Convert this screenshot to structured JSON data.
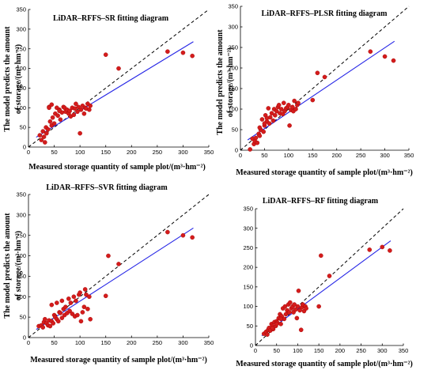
{
  "chart_data": [
    {
      "type": "scatter",
      "title": "LiDAR–RFFS–SR fitting diagram",
      "xlabel": "Measured storage quantity of sample plot/(m³·hm⁻²)",
      "ylabel_line1": "The model predicts the amount",
      "ylabel_line2": "of storage/(m³·hm⁻²)",
      "xlim": [
        0,
        350
      ],
      "ylim": [
        0,
        350
      ],
      "xticks": [
        "0",
        "50",
        "100",
        "150",
        "200",
        "250",
        "300",
        "350"
      ],
      "yticks": [
        "0",
        "50",
        "100",
        "150",
        "200",
        "250",
        "300",
        "350"
      ],
      "fit_line": {
        "x": [
          15,
          320
        ],
        "y": [
          25,
          268
        ]
      },
      "reference_line": {
        "x": [
          0,
          350
        ],
        "y": [
          0,
          350
        ]
      },
      "points": {
        "x": [
          22,
          25,
          28,
          30,
          32,
          34,
          35,
          38,
          40,
          42,
          45,
          47,
          50,
          52,
          55,
          57,
          60,
          62,
          65,
          68,
          70,
          72,
          75,
          78,
          80,
          82,
          85,
          88,
          90,
          92,
          95,
          97,
          100,
          102,
          105,
          108,
          110,
          112,
          115,
          118,
          120,
          40,
          45,
          60,
          150,
          175,
          270,
          300,
          318
        ],
        "y": [
          30,
          18,
          40,
          26,
          12,
          50,
          35,
          45,
          102,
          65,
          55,
          75,
          60,
          85,
          100,
          80,
          95,
          70,
          88,
          102,
          100,
          90,
          95,
          85,
          92,
          78,
          100,
          82,
          98,
          110,
          90,
          102,
          35,
          95,
          105,
          85,
          100,
          98,
          110,
          95,
          105,
          100,
          108,
          92,
          235,
          200,
          243,
          240,
          232
        ]
      }
    },
    {
      "type": "scatter",
      "title": "LiDAR–RFFS–PLSR fitting diagram",
      "xlabel": "Measured storage quantity of sample plot/(m³·hm⁻²)",
      "ylabel_line1": "The model predicts the amount",
      "ylabel_line2": "of storage/(m³·hm⁻²)",
      "xlim": [
        0,
        350
      ],
      "ylim": [
        0,
        350
      ],
      "xticks": [
        "0",
        "50",
        "100",
        "150",
        "200",
        "250",
        "300",
        "350"
      ],
      "yticks": [
        "0",
        "50",
        "100",
        "150",
        "200",
        "250",
        "300",
        "350"
      ],
      "fit_line": {
        "x": [
          15,
          320
        ],
        "y": [
          25,
          265
        ]
      },
      "reference_line": {
        "x": [
          0,
          350
        ],
        "y": [
          0,
          350
        ]
      },
      "points": {
        "x": [
          20,
          25,
          28,
          30,
          32,
          35,
          38,
          40,
          42,
          45,
          48,
          50,
          52,
          55,
          58,
          60,
          62,
          65,
          68,
          70,
          72,
          75,
          78,
          80,
          82,
          85,
          88,
          90,
          92,
          95,
          98,
          100,
          102,
          105,
          108,
          110,
          112,
          115,
          118,
          120,
          40,
          50,
          55,
          150,
          160,
          175,
          270,
          300,
          318
        ],
        "y": [
          2,
          28,
          15,
          22,
          30,
          18,
          40,
          35,
          50,
          75,
          45,
          60,
          85,
          70,
          102,
          65,
          80,
          90,
          72,
          100,
          85,
          95,
          105,
          110,
          90,
          100,
          88,
          115,
          95,
          102,
          105,
          110,
          60,
          98,
          105,
          95,
          120,
          100,
          110,
          115,
          55,
          65,
          78,
          122,
          188,
          178,
          240,
          228,
          218
        ]
      }
    },
    {
      "type": "scatter",
      "title": "LiDAR–RFFS–SVR fitting diagram",
      "xlabel": "Measured storage quantity of sample plot/(m³·hm⁻²)",
      "ylabel_line1": "The model predicts the amount",
      "ylabel_line2": "of storage/(m³·hm⁻²)",
      "xlim": [
        0,
        350
      ],
      "ylim": [
        0,
        350
      ],
      "xticks": [
        "0",
        "50",
        "100",
        "150",
        "200",
        "250",
        "300",
        "350"
      ],
      "yticks": [
        "0",
        "50",
        "100",
        "150",
        "200",
        "250",
        "300",
        "350"
      ],
      "fit_line": {
        "x": [
          15,
          320
        ],
        "y": [
          20,
          268
        ]
      },
      "reference_line": {
        "x": [
          0,
          350
        ],
        "y": [
          0,
          350
        ]
      },
      "points": {
        "x": [
          20,
          25,
          28,
          30,
          32,
          35,
          38,
          40,
          42,
          45,
          48,
          50,
          52,
          55,
          58,
          60,
          62,
          65,
          68,
          70,
          72,
          75,
          78,
          80,
          82,
          85,
          88,
          90,
          92,
          95,
          98,
          100,
          102,
          105,
          108,
          110,
          112,
          115,
          118,
          120,
          45,
          55,
          65,
          150,
          155,
          175,
          270,
          300,
          318
        ],
        "y": [
          28,
          30,
          25,
          38,
          45,
          35,
          30,
          42,
          28,
          40,
          35,
          55,
          50,
          45,
          40,
          62,
          60,
          48,
          70,
          55,
          75,
          60,
          95,
          65,
          85,
          58,
          100,
          52,
          90,
          55,
          105,
          110,
          40,
          62,
          75,
          118,
          105,
          70,
          100,
          45,
          80,
          85,
          90,
          102,
          200,
          180,
          258,
          250,
          245
        ]
      }
    },
    {
      "type": "scatter",
      "title": "LiDAR–RFFS–RF fitting diagram",
      "xlabel": "Measured storage quantity of sample plot/(m³·hm⁻²)",
      "ylabel_line1": "",
      "ylabel_line2": "",
      "xlim": [
        0,
        350
      ],
      "ylim": [
        0,
        350
      ],
      "xticks": [
        "0",
        "50",
        "100",
        "150",
        "200",
        "250",
        "300",
        "350"
      ],
      "yticks": [
        "0",
        "50",
        "100",
        "150",
        "200",
        "250",
        "300",
        "350"
      ],
      "fit_line": {
        "x": [
          15,
          320
        ],
        "y": [
          25,
          268
        ]
      },
      "reference_line": {
        "x": [
          0,
          350
        ],
        "y": [
          0,
          350
        ]
      },
      "points": {
        "x": [
          20,
          25,
          28,
          30,
          32,
          35,
          38,
          40,
          42,
          45,
          48,
          50,
          52,
          55,
          58,
          60,
          62,
          65,
          68,
          70,
          72,
          75,
          78,
          80,
          82,
          85,
          88,
          90,
          92,
          95,
          98,
          100,
          102,
          105,
          108,
          110,
          112,
          115,
          118,
          120,
          40,
          50,
          60,
          150,
          155,
          175,
          270,
          300,
          318
        ],
        "y": [
          30,
          35,
          28,
          40,
          45,
          38,
          55,
          50,
          42,
          60,
          50,
          62,
          58,
          70,
          80,
          55,
          75,
          95,
          68,
          100,
          80,
          90,
          105,
          85,
          110,
          95,
          100,
          85,
          105,
          92,
          70,
          100,
          140,
          90,
          40,
          98,
          105,
          88,
          100,
          95,
          45,
          55,
          68,
          100,
          230,
          178,
          245,
          252,
          243
        ]
      }
    }
  ]
}
